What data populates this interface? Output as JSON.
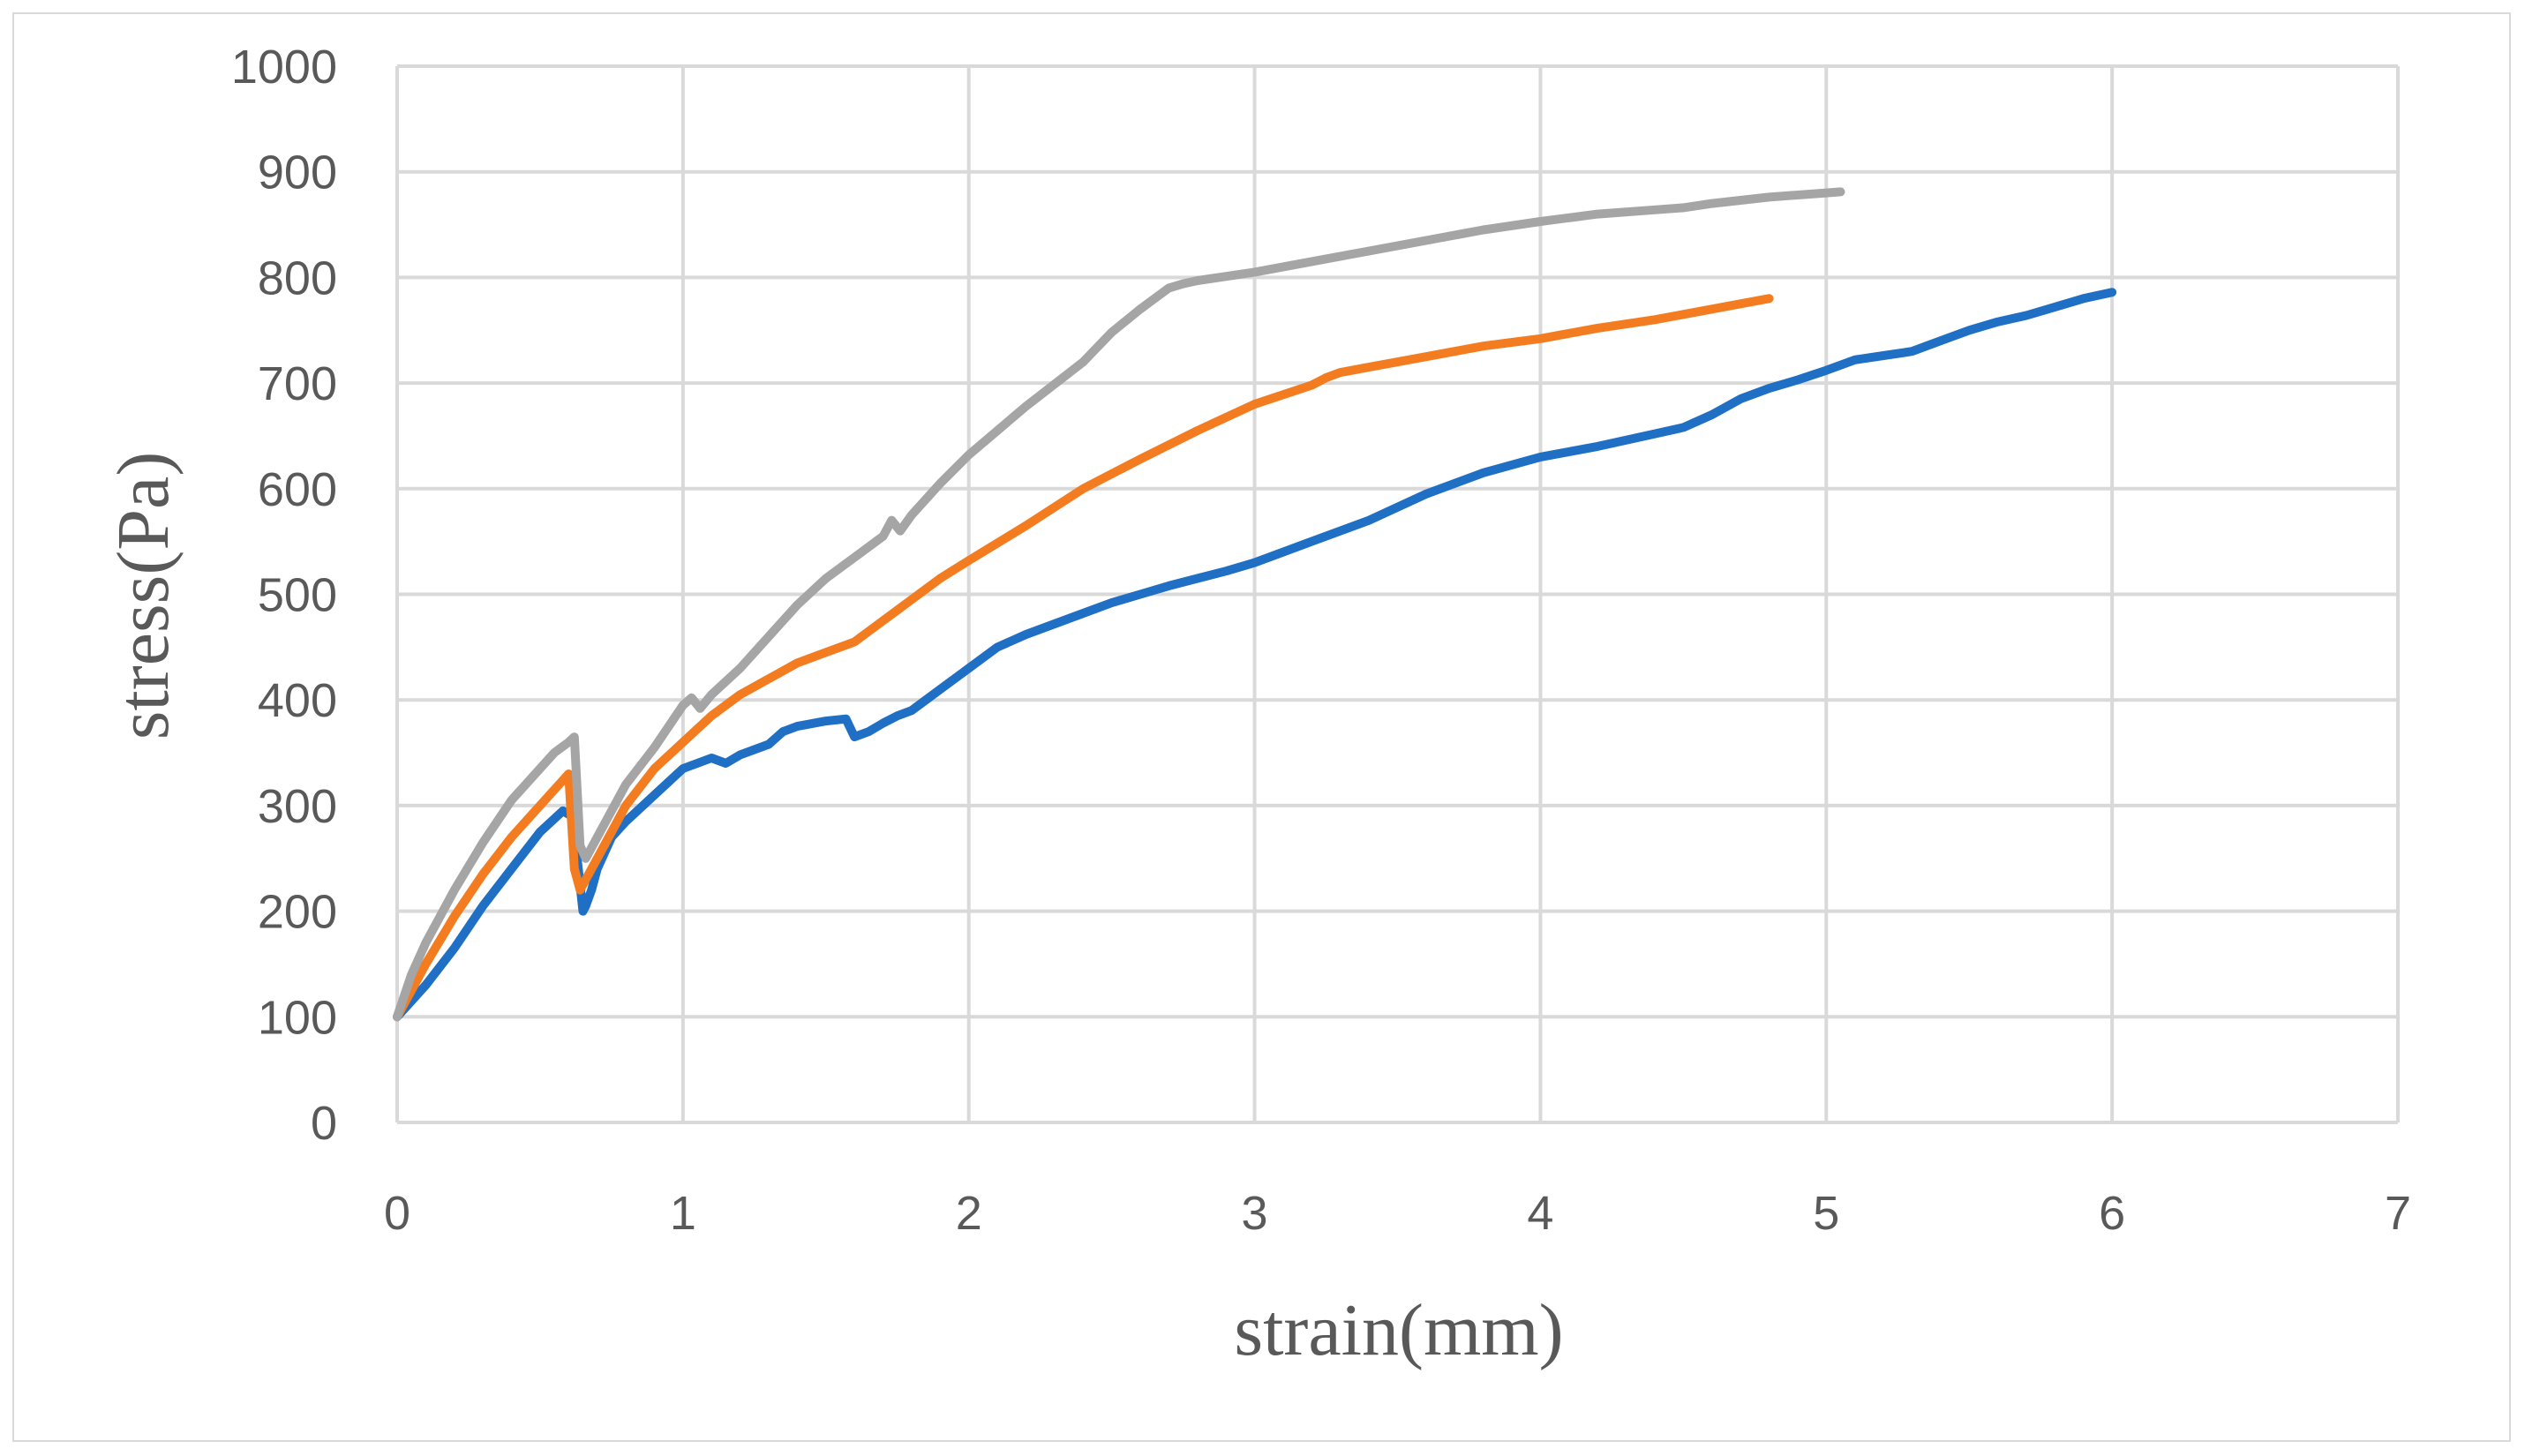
{
  "chart_data": {
    "type": "line",
    "title": "",
    "xlabel": "strain(mm)",
    "ylabel": "stress(Pa)",
    "xlim": [
      0,
      7
    ],
    "ylim": [
      0,
      1000
    ],
    "xticks": [
      0,
      1,
      2,
      3,
      4,
      5,
      6,
      7
    ],
    "yticks": [
      0,
      100,
      200,
      300,
      400,
      500,
      600,
      700,
      800,
      900,
      1000
    ],
    "grid": true,
    "legend": "none",
    "series": [
      {
        "color": "#1f6fc5",
        "x": [
          0,
          0.1,
          0.2,
          0.3,
          0.4,
          0.5,
          0.58,
          0.61,
          0.63,
          0.65,
          0.66,
          0.68,
          0.7,
          0.75,
          0.8,
          0.9,
          1.0,
          1.1,
          1.15,
          1.2,
          1.3,
          1.35,
          1.4,
          1.5,
          1.57,
          1.6,
          1.65,
          1.7,
          1.75,
          1.8,
          1.85,
          1.9,
          2.0,
          2.1,
          2.2,
          2.3,
          2.4,
          2.5,
          2.6,
          2.7,
          2.8,
          2.9,
          3.0,
          3.2,
          3.4,
          3.6,
          3.8,
          4.0,
          4.1,
          4.2,
          4.4,
          4.5,
          4.6,
          4.7,
          4.8,
          4.9,
          5.0,
          5.1,
          5.2,
          5.3,
          5.4,
          5.5,
          5.6,
          5.7,
          5.8,
          5.9,
          6.0
        ],
        "y": [
          100,
          130,
          165,
          205,
          240,
          275,
          295,
          290,
          250,
          200,
          205,
          220,
          240,
          270,
          285,
          310,
          335,
          345,
          340,
          348,
          358,
          370,
          375,
          380,
          382,
          365,
          370,
          378,
          385,
          390,
          400,
          410,
          430,
          450,
          462,
          472,
          482,
          492,
          500,
          508,
          515,
          522,
          530,
          550,
          570,
          595,
          615,
          630,
          635,
          640,
          652,
          658,
          670,
          685,
          695,
          703,
          712,
          722,
          726,
          730,
          740,
          750,
          758,
          764,
          772,
          780,
          786
        ]
      },
      {
        "color": "#f47c20",
        "x": [
          0,
          0.1,
          0.2,
          0.3,
          0.4,
          0.5,
          0.6,
          0.62,
          0.64,
          0.66,
          0.7,
          0.8,
          0.9,
          1.0,
          1.1,
          1.2,
          1.3,
          1.4,
          1.5,
          1.6,
          1.7,
          1.8,
          1.9,
          2.0,
          2.2,
          2.4,
          2.6,
          2.8,
          3.0,
          3.2,
          3.25,
          3.3,
          3.4,
          3.6,
          3.8,
          4.0,
          4.2,
          4.4,
          4.6,
          4.8
        ],
        "y": [
          100,
          150,
          195,
          235,
          270,
          300,
          330,
          240,
          220,
          230,
          250,
          300,
          335,
          360,
          385,
          405,
          420,
          435,
          445,
          455,
          475,
          495,
          515,
          532,
          565,
          600,
          628,
          655,
          680,
          698,
          705,
          710,
          715,
          725,
          735,
          742,
          752,
          760,
          770,
          780
        ]
      },
      {
        "color": "#a5a5a5",
        "x": [
          0,
          0.05,
          0.1,
          0.2,
          0.3,
          0.4,
          0.5,
          0.55,
          0.6,
          0.62,
          0.64,
          0.66,
          0.68,
          0.72,
          0.8,
          0.9,
          1.0,
          1.03,
          1.06,
          1.1,
          1.2,
          1.3,
          1.4,
          1.5,
          1.6,
          1.7,
          1.73,
          1.76,
          1.8,
          1.9,
          2.0,
          2.2,
          2.4,
          2.5,
          2.6,
          2.7,
          2.75,
          2.8,
          3.0,
          3.2,
          3.4,
          3.6,
          3.8,
          4.0,
          4.2,
          4.4,
          4.5,
          4.6,
          4.8,
          5.0,
          5.05
        ],
        "y": [
          100,
          140,
          170,
          220,
          265,
          305,
          335,
          350,
          360,
          365,
          262,
          250,
          260,
          280,
          320,
          355,
          395,
          402,
          392,
          405,
          430,
          460,
          490,
          515,
          535,
          555,
          570,
          560,
          575,
          605,
          632,
          678,
          720,
          748,
          770,
          790,
          794,
          797,
          805,
          815,
          825,
          835,
          845,
          853,
          860,
          864,
          866,
          870,
          876,
          880,
          881
        ]
      }
    ]
  }
}
